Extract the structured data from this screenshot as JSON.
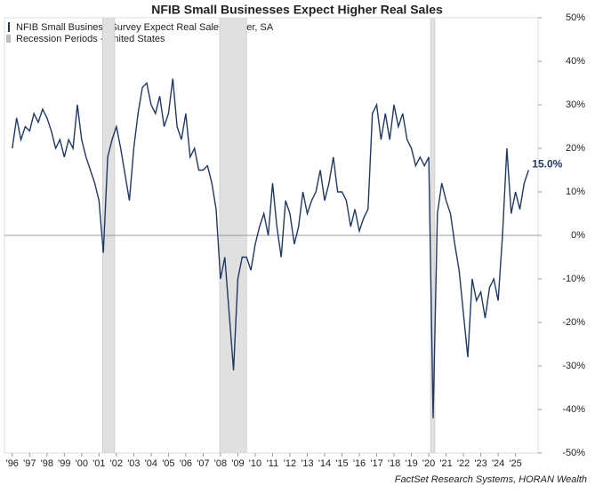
{
  "chart_data": {
    "type": "line",
    "title": "NFIB Small Businesses Expect Higher Real Sales",
    "source": "FactSet Research Systems, HORAN Wealth",
    "series": [
      {
        "name": "NFIB Small Business Survey Expect Real Sales Higher, SA",
        "color": "#1f3864",
        "x": [
          1996,
          1996.25,
          1996.5,
          1996.75,
          1997,
          1997.25,
          1997.5,
          1997.75,
          1998,
          1998.25,
          1998.5,
          1998.75,
          1999,
          1999.25,
          1999.5,
          1999.75,
          2000,
          2000.25,
          2000.5,
          2000.75,
          2001,
          2001.25,
          2001.5,
          2001.75,
          2002,
          2002.25,
          2002.5,
          2002.75,
          2003,
          2003.25,
          2003.5,
          2003.75,
          2004,
          2004.25,
          2004.5,
          2004.75,
          2005,
          2005.25,
          2005.5,
          2005.75,
          2006,
          2006.25,
          2006.5,
          2006.75,
          2007,
          2007.25,
          2007.5,
          2007.75,
          2008,
          2008.25,
          2008.5,
          2008.75,
          2009,
          2009.25,
          2009.5,
          2009.75,
          2010,
          2010.25,
          2010.5,
          2010.75,
          2011,
          2011.25,
          2011.5,
          2011.75,
          2012,
          2012.25,
          2012.5,
          2012.75,
          2013,
          2013.25,
          2013.5,
          2013.75,
          2014,
          2014.25,
          2014.5,
          2014.75,
          2015,
          2015.25,
          2015.5,
          2015.75,
          2016,
          2016.25,
          2016.5,
          2016.75,
          2017,
          2017.25,
          2017.5,
          2017.75,
          2018,
          2018.25,
          2018.5,
          2018.75,
          2019,
          2019.25,
          2019.5,
          2019.75,
          2020,
          2020.25,
          2020.5,
          2020.75,
          2021,
          2021.25,
          2021.5,
          2021.75,
          2022,
          2022.25,
          2022.5,
          2022.75,
          2023,
          2023.25,
          2023.5,
          2023.75,
          2024,
          2024.25,
          2024.5,
          2024.75,
          2025,
          2025.25,
          2025.5,
          2025.75
        ],
        "values": [
          20,
          27,
          22,
          25,
          24,
          28,
          26,
          29,
          27,
          24,
          20,
          22,
          18,
          22,
          20,
          30,
          22,
          18,
          15,
          12,
          8,
          -4,
          18,
          22,
          25,
          20,
          14,
          8,
          20,
          28,
          34,
          35,
          30,
          28,
          32,
          25,
          28,
          36,
          25,
          22,
          28,
          18,
          20,
          15,
          15,
          16,
          12,
          6,
          -10,
          -5,
          -18,
          -31,
          -10,
          -5,
          -5,
          -8,
          -2,
          2,
          5,
          0,
          12,
          2,
          -5,
          8,
          5,
          -2,
          2,
          10,
          5,
          8,
          10,
          15,
          8,
          12,
          18,
          10,
          10,
          8,
          2,
          6,
          1,
          4,
          6,
          28,
          30,
          22,
          28,
          22,
          30,
          25,
          28,
          22,
          20,
          16,
          18,
          16,
          18,
          -42,
          5,
          12,
          8,
          5,
          -2,
          -8,
          -18,
          -28,
          -10,
          -15,
          -13,
          -19,
          -12,
          -10,
          -15,
          0,
          20,
          5,
          10,
          6,
          12,
          15
        ],
        "value_labels": {
          "119": "15.0%"
        }
      }
    ],
    "recession_label": "Recession Periods - United States",
    "recessions": [
      [
        2001.2,
        2001.9
      ],
      [
        2007.95,
        2009.5
      ],
      [
        2020.1,
        2020.35
      ]
    ],
    "xlim": [
      1995.55,
      2026.3
    ],
    "xticks": [
      {
        "value": 1996,
        "label": "'96"
      },
      {
        "value": 1997,
        "label": "'97"
      },
      {
        "value": 1998,
        "label": "'98"
      },
      {
        "value": 1999,
        "label": "'99"
      },
      {
        "value": 2000,
        "label": "'00"
      },
      {
        "value": 2001,
        "label": "'01"
      },
      {
        "value": 2002,
        "label": "'02"
      },
      {
        "value": 2003,
        "label": "'03"
      },
      {
        "value": 2004,
        "label": "'04"
      },
      {
        "value": 2005,
        "label": "'05"
      },
      {
        "value": 2006,
        "label": "'06"
      },
      {
        "value": 2007,
        "label": "'07"
      },
      {
        "value": 2008,
        "label": "'08"
      },
      {
        "value": 2009,
        "label": "'09"
      },
      {
        "value": 2010,
        "label": "'10"
      },
      {
        "value": 2011,
        "label": "'11"
      },
      {
        "value": 2012,
        "label": "'12"
      },
      {
        "value": 2013,
        "label": "'13"
      },
      {
        "value": 2014,
        "label": "'14"
      },
      {
        "value": 2015,
        "label": "'15"
      },
      {
        "value": 2016,
        "label": "'16"
      },
      {
        "value": 2017,
        "label": "'17"
      },
      {
        "value": 2018,
        "label": "'18"
      },
      {
        "value": 2019,
        "label": "'19"
      },
      {
        "value": 2020,
        "label": "'20"
      },
      {
        "value": 2021,
        "label": "'21"
      },
      {
        "value": 2022,
        "label": "'22"
      },
      {
        "value": 2023,
        "label": "'23"
      },
      {
        "value": 2024,
        "label": "'24"
      },
      {
        "value": 2025,
        "label": "'25"
      }
    ],
    "ylim": [
      -50,
      50
    ],
    "yticks": [
      {
        "value": -50,
        "label": "-50%"
      },
      {
        "value": -40,
        "label": "-40%"
      },
      {
        "value": -30,
        "label": "-30%"
      },
      {
        "value": -20,
        "label": "-20%"
      },
      {
        "value": -10,
        "label": "-10%"
      },
      {
        "value": 0,
        "label": "0%"
      },
      {
        "value": 10,
        "label": "10%"
      },
      {
        "value": 20,
        "label": "20%"
      },
      {
        "value": 30,
        "label": "30%"
      },
      {
        "value": 40,
        "label": "40%"
      },
      {
        "value": 50,
        "label": "50%"
      }
    ]
  }
}
